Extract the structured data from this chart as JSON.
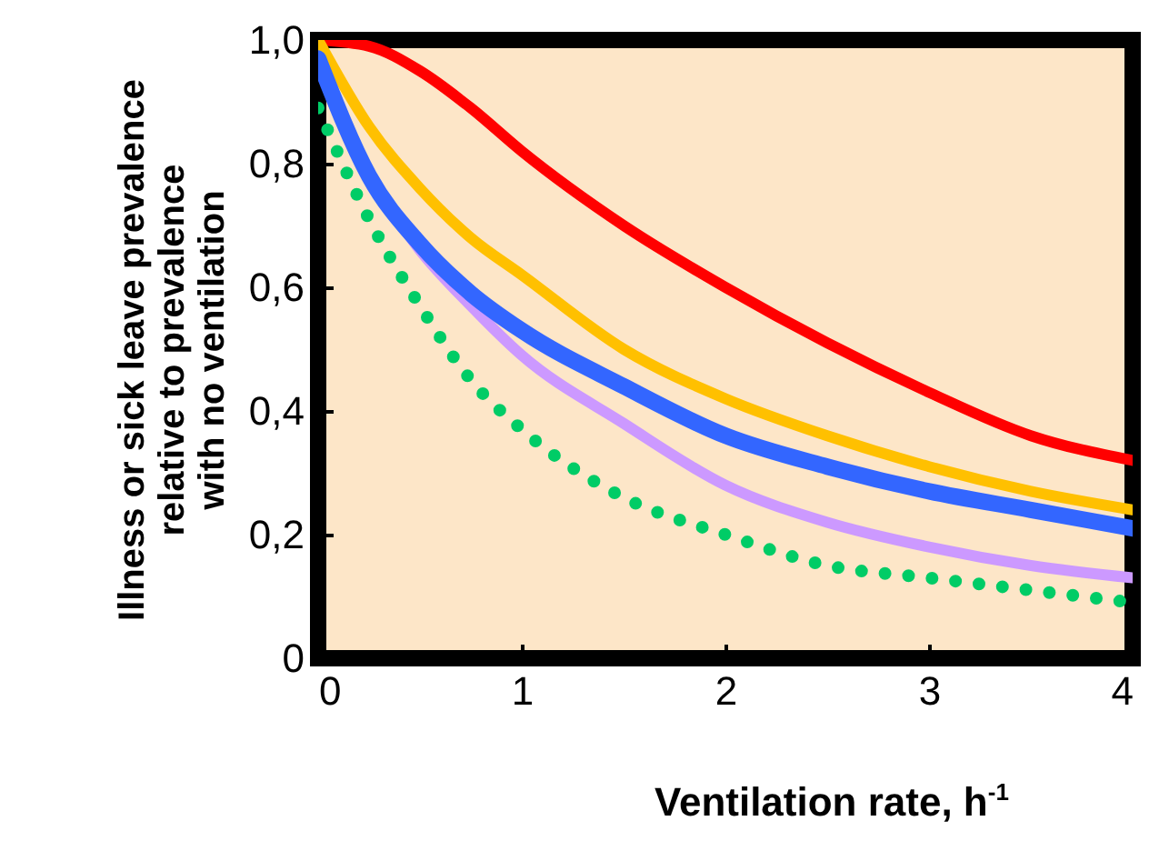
{
  "chart_data": {
    "type": "line",
    "xlabel": "Ventilation rate, h$^{-1}$",
    "ylabel": "Illness or sick leave prevalence\nrelative to prevalence\nwith no ventilation",
    "x": [
      0,
      0.25,
      0.5,
      0.75,
      1,
      1.5,
      2,
      2.5,
      3,
      3.5,
      4
    ],
    "series": [
      {
        "color": "#ff0000",
        "values": [
          1.0,
          0.99,
          0.95,
          0.89,
          0.82,
          0.7,
          0.6,
          0.51,
          0.43,
          0.36,
          0.32
        ]
      },
      {
        "color": "#ffc000",
        "values": [
          1.0,
          0.86,
          0.76,
          0.68,
          0.62,
          0.5,
          0.42,
          0.36,
          0.31,
          0.27,
          0.24
        ]
      },
      {
        "color": "#cc99ff",
        "values": [
          null,
          0.78,
          0.66,
          0.57,
          0.49,
          0.38,
          0.28,
          0.22,
          0.18,
          0.15,
          0.13
        ]
      },
      {
        "color": "#3366ff",
        "values": [
          0.97,
          0.78,
          0.67,
          0.59,
          0.53,
          0.44,
          0.36,
          0.31,
          0.27,
          0.24,
          0.21
        ]
      },
      {
        "color": "#00cc66",
        "line_style": "dotted",
        "values": [
          0.89,
          0.71,
          0.57,
          0.45,
          0.37,
          0.26,
          0.2,
          0.15,
          0.13,
          0.11,
          0.09
        ]
      }
    ],
    "xlim": [
      0,
      4
    ],
    "xticks": [
      0,
      1,
      2,
      3,
      4
    ],
    "ylim": [
      0,
      1
    ],
    "yticks": [
      {
        "value": 0,
        "label": "0"
      },
      {
        "value": 0.2,
        "label": "0,2"
      },
      {
        "value": 0.4,
        "label": "0,4"
      },
      {
        "value": 0.6,
        "label": "0,6"
      },
      {
        "value": 0.8,
        "label": "0,8"
      },
      {
        "value": 1,
        "label": "1,0"
      }
    ],
    "grid": false,
    "marker": "none"
  }
}
